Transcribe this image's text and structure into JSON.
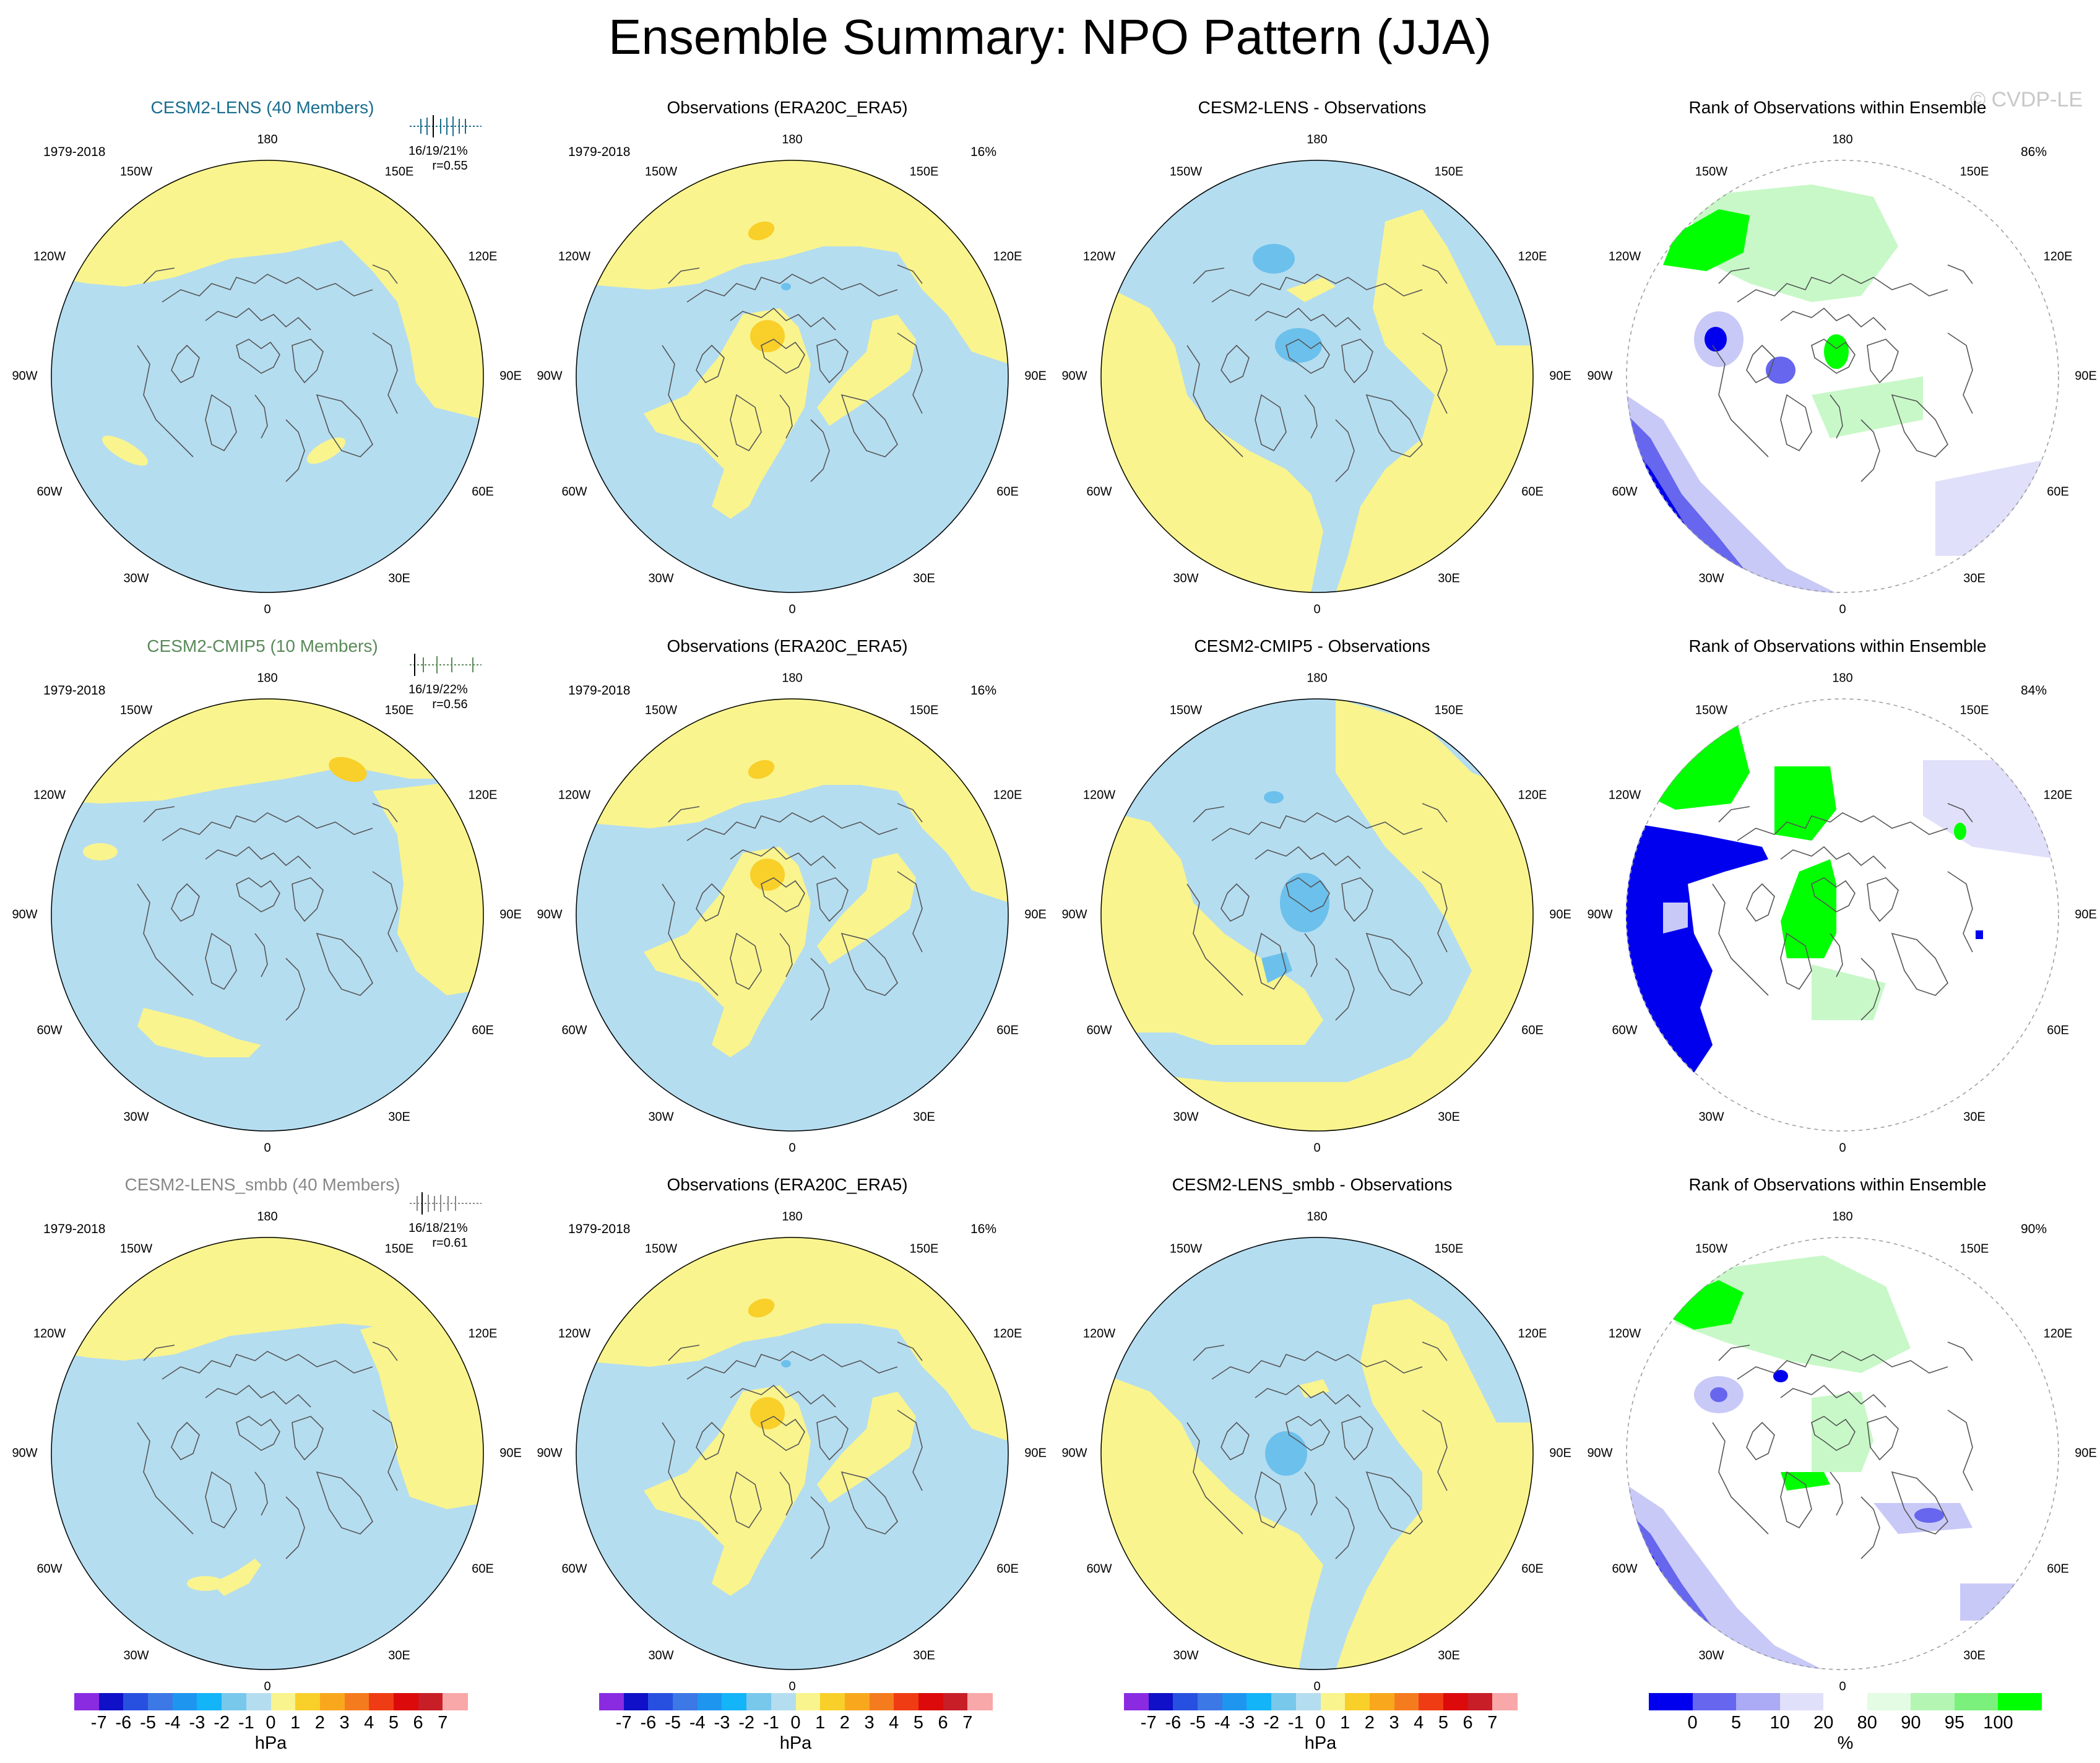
{
  "title": "Ensemble Summary: NPO Pattern (JJA)",
  "watermark": "© CVDP-LE",
  "compass": {
    "top": "180",
    "upper_left": "150W",
    "upper_right": "150E",
    "left_upper": "120W",
    "right_upper": "120E",
    "left": "90W",
    "right": "90E",
    "left_lower": "60W",
    "right_lower": "60E",
    "lower_left": "30W",
    "lower_right": "30E",
    "bottom": "0"
  },
  "colors": {
    "positive": "#f9f48e",
    "positive_strong": "#f9cf2a",
    "negative": "#b5ddf0",
    "negative_strong": "#6cc0ec",
    "rank_green": "#00ff00",
    "rank_blue": "#0000ee",
    "rank_lightblue": "#c9c9f8",
    "rank_lightgreen": "#c8f8c8"
  },
  "rows": [
    {
      "model_title": "CESM2-LENS (40 Members)",
      "model_title_color": "#1a6d8f",
      "period": "1979-2018",
      "stats_pct": "16/19/21%",
      "stats_r": "r=0.55",
      "obs_title": "Observations (ERA20C_ERA5)",
      "obs_period": "1979-2018",
      "obs_pct": "16%",
      "diff_title": "CESM2-LENS - Observations",
      "rank_title": "Rank of Observations within Ensemble",
      "rank_pct": "86%"
    },
    {
      "model_title": "CESM2-CMIP5 (10 Members)",
      "model_title_color": "#5a8a5a",
      "period": "1979-2018",
      "stats_pct": "16/19/22%",
      "stats_r": "r=0.56",
      "obs_title": "Observations (ERA20C_ERA5)",
      "obs_period": "1979-2018",
      "obs_pct": "16%",
      "diff_title": "CESM2-CMIP5 - Observations",
      "rank_title": "Rank of Observations within Ensemble",
      "rank_pct": "84%"
    },
    {
      "model_title": "CESM2-LENS_smbb (40 Members)",
      "model_title_color": "#888888",
      "period": "1979-2018",
      "stats_pct": "16/18/21%",
      "stats_r": "r=0.61",
      "obs_title": "Observations (ERA20C_ERA5)",
      "obs_period": "1979-2018",
      "obs_pct": "16%",
      "diff_title": "CESM2-LENS_smbb - Observations",
      "rank_title": "Rank of Observations within Ensemble",
      "rank_pct": "90%"
    }
  ],
  "colorbar_hpa": {
    "ticks": [
      "-7",
      "-6",
      "-5",
      "-4",
      "-3",
      "-2",
      "-1",
      "0",
      "1",
      "2",
      "3",
      "4",
      "5",
      "6",
      "7"
    ],
    "unit": "hPa",
    "colors": [
      "#8a2be2",
      "#1010c8",
      "#2850e0",
      "#3c78e6",
      "#1e96f0",
      "#14b4f8",
      "#78c8ec",
      "#b5ddf0",
      "#f9f48e",
      "#f9cf2a",
      "#f9a81e",
      "#f57c1e",
      "#f03c14",
      "#dc0a0a",
      "#c81e28",
      "#f8a8a8"
    ]
  },
  "colorbar_rank": {
    "ticks": [
      "0",
      "5",
      "10",
      "20",
      "80",
      "90",
      "95",
      "100"
    ],
    "unit": "%",
    "colors": [
      "#0000ee",
      "#6666ee",
      "#aaaaf5",
      "#e0e0fa",
      "#ffffff",
      "#e4fbe4",
      "#b4f5b4",
      "#7cf07c",
      "#00ff00"
    ]
  }
}
